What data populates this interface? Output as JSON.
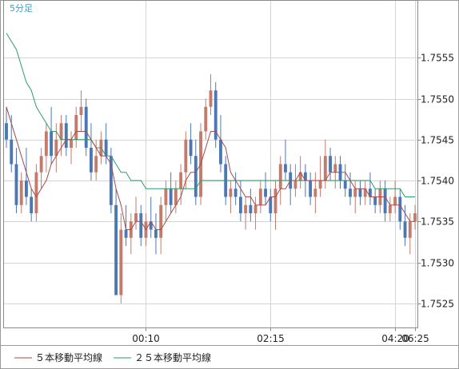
{
  "chart_data": {
    "type": "candlestick",
    "period_label": "5分足",
    "x_ticks": [
      "00:10",
      "02:15",
      "04:20",
      "06:25"
    ],
    "y_ticks": [
      "1.7525",
      "1.7530",
      "1.7535",
      "1.7540",
      "1.7545",
      "1.7550",
      "1.7555"
    ],
    "ylim": [
      1.7522,
      1.7562
    ],
    "grid": true,
    "legend_position": "bottom",
    "colors": {
      "up": "#c47b6c",
      "down": "#4a78b5",
      "ma5": "#a84a4a",
      "ma25": "#2e9c68",
      "grid": "#d4d4d4",
      "period_label": "#2aa5d8"
    },
    "series": [
      {
        "name": "５本移動平均線",
        "color": "#a84a4a"
      },
      {
        "name": "２５本移動平均線",
        "color": "#2e9c68"
      }
    ],
    "ohlc": [
      [
        1.7547,
        1.7549,
        1.7544,
        1.7545
      ],
      [
        1.7545,
        1.7548,
        1.7541,
        1.7542
      ],
      [
        1.7542,
        1.7544,
        1.7536,
        1.7537
      ],
      [
        1.7537,
        1.7541,
        1.7536,
        1.754
      ],
      [
        1.754,
        1.7544,
        1.7537,
        1.7538
      ],
      [
        1.7538,
        1.7539,
        1.7535,
        1.7536
      ],
      [
        1.7536,
        1.7542,
        1.7535,
        1.7541
      ],
      [
        1.7541,
        1.7544,
        1.7539,
        1.7543
      ],
      [
        1.7543,
        1.7547,
        1.7541,
        1.7546
      ],
      [
        1.7546,
        1.7549,
        1.7542,
        1.7543
      ],
      [
        1.7543,
        1.7547,
        1.7541,
        1.7545
      ],
      [
        1.7545,
        1.7548,
        1.7543,
        1.7547
      ],
      [
        1.7547,
        1.7548,
        1.7543,
        1.7544
      ],
      [
        1.7544,
        1.7546,
        1.7542,
        1.7545
      ],
      [
        1.7545,
        1.7549,
        1.7544,
        1.7548
      ],
      [
        1.7548,
        1.7551,
        1.7546,
        1.7549
      ],
      [
        1.7549,
        1.755,
        1.7543,
        1.7544
      ],
      [
        1.7544,
        1.7547,
        1.754,
        1.7541
      ],
      [
        1.7541,
        1.7545,
        1.754,
        1.7543
      ],
      [
        1.7543,
        1.7546,
        1.7542,
        1.7545
      ],
      [
        1.7545,
        1.7547,
        1.7542,
        1.7543
      ],
      [
        1.7543,
        1.7544,
        1.7536,
        1.7537
      ],
      [
        1.7537,
        1.7539,
        1.7526,
        1.7526
      ],
      [
        1.7526,
        1.7536,
        1.7525,
        1.7534
      ],
      [
        1.7534,
        1.7537,
        1.7532,
        1.7533
      ],
      [
        1.7533,
        1.7536,
        1.7531,
        1.7535
      ],
      [
        1.7535,
        1.7538,
        1.7534,
        1.7536
      ],
      [
        1.7536,
        1.7537,
        1.7532,
        1.7533
      ],
      [
        1.7533,
        1.7536,
        1.7532,
        1.7535
      ],
      [
        1.7535,
        1.7538,
        1.7533,
        1.7534
      ],
      [
        1.7534,
        1.7536,
        1.7531,
        1.7533
      ],
      [
        1.7533,
        1.7538,
        1.7531,
        1.7537
      ],
      [
        1.7537,
        1.754,
        1.7535,
        1.7539
      ],
      [
        1.7539,
        1.7541,
        1.7536,
        1.7537
      ],
      [
        1.7537,
        1.754,
        1.7536,
        1.7539
      ],
      [
        1.7539,
        1.7542,
        1.7537,
        1.7541
      ],
      [
        1.7541,
        1.7546,
        1.7539,
        1.7545
      ],
      [
        1.7545,
        1.7547,
        1.7542,
        1.7543
      ],
      [
        1.7543,
        1.7545,
        1.7537,
        1.7538
      ],
      [
        1.7538,
        1.7547,
        1.7537,
        1.7546
      ],
      [
        1.7546,
        1.755,
        1.7545,
        1.7549
      ],
      [
        1.7549,
        1.7553,
        1.7548,
        1.7551
      ],
      [
        1.7551,
        1.7552,
        1.7544,
        1.7545
      ],
      [
        1.7545,
        1.7548,
        1.7541,
        1.7542
      ],
      [
        1.7542,
        1.7543,
        1.7537,
        1.7538
      ],
      [
        1.7538,
        1.754,
        1.7536,
        1.7539
      ],
      [
        1.7539,
        1.7541,
        1.7537,
        1.7538
      ],
      [
        1.7538,
        1.754,
        1.7535,
        1.7536
      ],
      [
        1.7536,
        1.7538,
        1.7534,
        1.7537
      ],
      [
        1.7537,
        1.7539,
        1.7535,
        1.7536
      ],
      [
        1.7536,
        1.7538,
        1.7534,
        1.7537
      ],
      [
        1.7537,
        1.754,
        1.7536,
        1.7539
      ],
      [
        1.7539,
        1.7541,
        1.7537,
        1.7538
      ],
      [
        1.7538,
        1.7539,
        1.7535,
        1.7536
      ],
      [
        1.7536,
        1.754,
        1.7534,
        1.7539
      ],
      [
        1.7539,
        1.7543,
        1.7537,
        1.7542
      ],
      [
        1.7542,
        1.7545,
        1.754,
        1.7541
      ],
      [
        1.7541,
        1.7542,
        1.7537,
        1.7539
      ],
      [
        1.7539,
        1.7542,
        1.7538,
        1.754
      ],
      [
        1.754,
        1.7543,
        1.7539,
        1.7541
      ],
      [
        1.7541,
        1.7542,
        1.7538,
        1.754
      ],
      [
        1.754,
        1.7541,
        1.7537,
        1.7538
      ],
      [
        1.7538,
        1.7541,
        1.7536,
        1.7539
      ],
      [
        1.7539,
        1.7543,
        1.7538,
        1.754
      ],
      [
        1.754,
        1.7545,
        1.7539,
        1.7543
      ],
      [
        1.7543,
        1.7544,
        1.754,
        1.7541
      ],
      [
        1.7541,
        1.7543,
        1.7539,
        1.7542
      ],
      [
        1.7542,
        1.7543,
        1.7539,
        1.754
      ],
      [
        1.754,
        1.7542,
        1.7538,
        1.7539
      ],
      [
        1.7539,
        1.7541,
        1.7537,
        1.7538
      ],
      [
        1.7538,
        1.754,
        1.7536,
        1.7539
      ],
      [
        1.7539,
        1.754,
        1.7537,
        1.7538
      ],
      [
        1.7538,
        1.754,
        1.7537,
        1.7539
      ],
      [
        1.7539,
        1.7541,
        1.7537,
        1.7538
      ],
      [
        1.7538,
        1.7539,
        1.7536,
        1.7537
      ],
      [
        1.7537,
        1.754,
        1.7536,
        1.7539
      ],
      [
        1.7539,
        1.754,
        1.7535,
        1.7536
      ],
      [
        1.7536,
        1.7538,
        1.7535,
        1.7537
      ],
      [
        1.7537,
        1.754,
        1.7536,
        1.7538
      ],
      [
        1.7538,
        1.7539,
        1.7534,
        1.7535
      ],
      [
        1.7535,
        1.7537,
        1.7532,
        1.7533
      ],
      [
        1.7533,
        1.7536,
        1.7531,
        1.7535
      ],
      [
        1.7535,
        1.7537,
        1.7534,
        1.7536
      ]
    ],
    "ma5": [
      1.7549,
      1.7547,
      1.7545,
      1.7543,
      1.7541,
      1.7539,
      1.7538,
      1.7539,
      1.754,
      1.7542,
      1.7543,
      1.7544,
      1.7545,
      1.7545,
      1.7546,
      1.7546,
      1.7546,
      1.7545,
      1.7544,
      1.7543,
      1.7543,
      1.7542,
      1.7539,
      1.7537,
      1.7534,
      1.7534,
      1.7535,
      1.7535,
      1.7534,
      1.7535,
      1.7534,
      1.7534,
      1.7535,
      1.7536,
      1.7537,
      1.7538,
      1.754,
      1.7541,
      1.7541,
      1.7542,
      1.7544,
      1.7546,
      1.7546,
      1.7545,
      1.7544,
      1.7541,
      1.754,
      1.7539,
      1.7538,
      1.7538,
      1.7537,
      1.7537,
      1.7537,
      1.7538,
      1.7538,
      1.7539,
      1.7539,
      1.754,
      1.754,
      1.7541,
      1.754,
      1.754,
      1.754,
      1.754,
      1.754,
      1.7541,
      1.7541,
      1.7541,
      1.7541,
      1.754,
      1.7539,
      1.7539,
      1.7539,
      1.7538,
      1.7538,
      1.7538,
      1.7538,
      1.7537,
      1.7537,
      1.7537,
      1.7536,
      1.7535,
      1.7535
    ],
    "ma25": [
      1.7558,
      1.7557,
      1.7556,
      1.7554,
      1.7552,
      1.7551,
      1.7549,
      1.7548,
      1.7547,
      1.7546,
      1.7546,
      1.7545,
      1.7545,
      1.7545,
      1.7545,
      1.7545,
      1.7545,
      1.7545,
      1.7544,
      1.7544,
      1.7543,
      1.7543,
      1.7542,
      1.7541,
      1.7541,
      1.754,
      1.754,
      1.754,
      1.7539,
      1.7539,
      1.7539,
      1.7539,
      1.7539,
      1.7539,
      1.7539,
      1.7539,
      1.7539,
      1.7539,
      1.7539,
      1.754,
      1.754,
      1.754,
      1.754,
      1.754,
      1.754,
      1.754,
      1.754,
      1.754,
      1.754,
      1.754,
      1.754,
      1.754,
      1.754,
      1.754,
      1.754,
      1.754,
      1.754,
      1.754,
      1.754,
      1.754,
      1.754,
      1.754,
      1.754,
      1.754,
      1.754,
      1.754,
      1.754,
      1.754,
      1.754,
      1.754,
      1.754,
      1.754,
      1.754,
      1.754,
      1.7539,
      1.7539,
      1.7539,
      1.7539,
      1.7539,
      1.7539,
      1.7538,
      1.7538,
      1.7538
    ]
  }
}
